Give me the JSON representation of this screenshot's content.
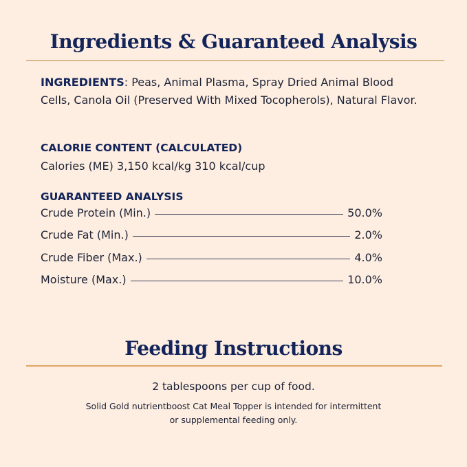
{
  "colors": {
    "background": "#fdeee1",
    "heading": "#13245a",
    "rule_top": "#d9b98c",
    "rule_bottom": "#e2a463"
  },
  "title": "Ingredients & Guaranteed Analysis",
  "ingredients": {
    "label": "INGREDIENTS",
    "text": ": Peas, Animal Plasma, Spray Dried Animal Blood Cells, Canola Oil (Preserved With Mixed Tocopherols), Natural Flavor."
  },
  "calorie": {
    "label": "CALORIE CONTENT (CALCULATED)",
    "text": "Calories (ME) 3,150 kcal/kg  310 kcal/cup"
  },
  "analysis": {
    "label": "GUARANTEED ANALYSIS",
    "rows": [
      {
        "name": "Crude Protein (Min.)",
        "value": "50.0%"
      },
      {
        "name": "Crude Fat (Min.)",
        "value": "2.0%"
      },
      {
        "name": "Crude Fiber (Max.)",
        "value": "4.0%"
      },
      {
        "name": "Moisture (Max.)",
        "value": "10.0%"
      }
    ]
  },
  "feeding": {
    "title": "Feeding Instructions",
    "amount": "2 tablespoons per cup of food.",
    "note_line1": "Solid Gold nutrientboost Cat Meal Topper is intended for intermittent",
    "note_line2": "or supplemental feeding only."
  }
}
